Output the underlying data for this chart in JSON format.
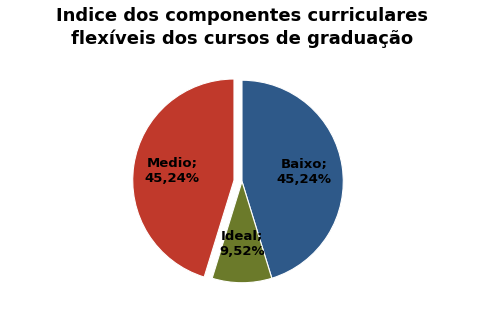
{
  "title": "Indice dos componentes curriculares\nflexíveis dos cursos de graduação",
  "slices": [
    {
      "label": "Baixo",
      "value": 45.24,
      "color": "#2E5989",
      "pct": "45,24%"
    },
    {
      "label": "Ideal",
      "value": 9.52,
      "color": "#6B7A2A",
      "pct": "9,52%"
    },
    {
      "label": "Medio",
      "value": 45.24,
      "color": "#C0392B",
      "pct": "45,24%"
    }
  ],
  "background_color": "#FFFFFF",
  "title_fontsize": 13,
  "label_fontsize": 9.5,
  "startangle": 90,
  "explode": [
    0,
    0,
    0.08
  ]
}
